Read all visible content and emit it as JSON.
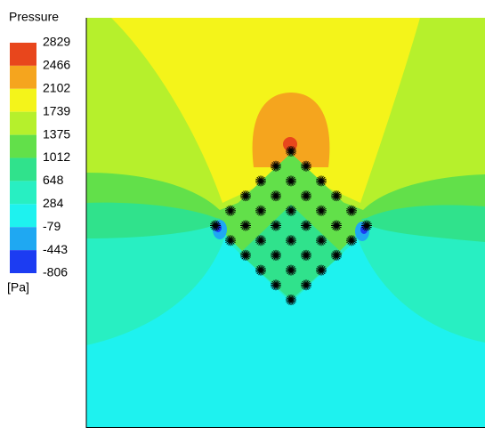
{
  "chart_data": {
    "type": "contour",
    "title": "Pressure",
    "unit": "[Pa]",
    "levels": [
      2829,
      2466,
      2102,
      1739,
      1375,
      1012,
      648,
      284,
      -79,
      -443,
      -806
    ],
    "colors": [
      "#e8461c",
      "#f5a51e",
      "#f4f41a",
      "#b6f02c",
      "#62e04a",
      "#30e28c",
      "#28efc2",
      "#1ef2ef",
      "#1fa8f2",
      "#1c3cf2"
    ]
  }
}
